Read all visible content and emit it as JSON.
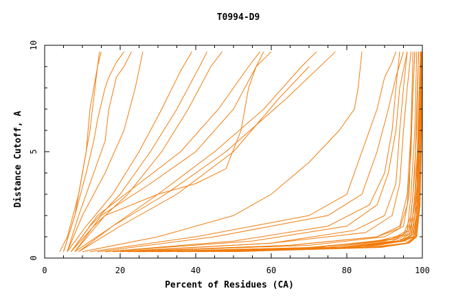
{
  "chart_data": {
    "type": "line",
    "title": "T0994-D9",
    "xlabel": "Percent of Residues (CA)",
    "ylabel": "Distance Cutoff, A",
    "xlim": [
      0,
      100
    ],
    "ylim": [
      0,
      10
    ],
    "x_ticks": [
      "0",
      "20",
      "40",
      "60",
      "80",
      "100"
    ],
    "y_ticks": [
      "0",
      "5",
      "10"
    ],
    "line_color": "#f07c0c",
    "grid": false,
    "series": [
      {
        "x": [
          5,
          8,
          10,
          12,
          13,
          14,
          15
        ],
        "y": [
          0.3,
          2,
          4,
          6,
          7.5,
          9,
          9.7
        ]
      },
      {
        "x": [
          4,
          6,
          9,
          11,
          12,
          14,
          14.5
        ],
        "y": [
          0.3,
          1,
          3,
          5,
          7,
          9,
          9.7
        ]
      },
      {
        "x": [
          5,
          8,
          11,
          13,
          14,
          16,
          17,
          19,
          21
        ],
        "y": [
          0.3,
          2,
          4,
          5.5,
          6.5,
          8,
          8.5,
          9.2,
          9.7
        ]
      },
      {
        "x": [
          6,
          9,
          13,
          16,
          17,
          19,
          21,
          23
        ],
        "y": [
          0.3,
          2,
          4,
          5.5,
          7,
          8.5,
          9,
          9.7
        ]
      },
      {
        "x": [
          6,
          10,
          16,
          21,
          24,
          26
        ],
        "y": [
          0.3,
          2,
          4,
          6,
          8,
          9.7
        ]
      },
      {
        "x": [
          6,
          11,
          18,
          25,
          31,
          36,
          39
        ],
        "y": [
          0.3,
          1.5,
          3,
          5,
          7,
          8.8,
          9.7
        ]
      },
      {
        "x": [
          7,
          12,
          20,
          28,
          35,
          41,
          43
        ],
        "y": [
          0.3,
          1.5,
          3,
          5,
          7,
          9,
          9.7
        ]
      },
      {
        "x": [
          7,
          13,
          22,
          31,
          38,
          44,
          47
        ],
        "y": [
          0.3,
          1.5,
          3,
          5,
          7,
          9,
          9.7
        ]
      },
      {
        "x": [
          7,
          14,
          25,
          36,
          46,
          54,
          57
        ],
        "y": [
          0.3,
          2,
          3.5,
          5,
          7,
          9,
          9.7
        ]
      },
      {
        "x": [
          8,
          15,
          28,
          40,
          50,
          56,
          60
        ],
        "y": [
          0.3,
          2,
          3.5,
          5,
          7,
          9,
          9.7
        ]
      },
      {
        "x": [
          8,
          16,
          30,
          40,
          48,
          52,
          54,
          56,
          58
        ],
        "y": [
          0.3,
          2,
          3,
          3.5,
          4.2,
          6,
          8,
          9,
          9.7
        ]
      },
      {
        "x": [
          8,
          18,
          30,
          45,
          58,
          68,
          72
        ],
        "y": [
          0.3,
          1.5,
          3,
          5,
          7,
          9,
          9.7
        ]
      },
      {
        "x": [
          9,
          18,
          32,
          48,
          64,
          77
        ],
        "y": [
          0.3,
          1.5,
          3,
          5,
          7.5,
          9.7
        ]
      },
      {
        "x": [
          9,
          20,
          35,
          50,
          62,
          70
        ],
        "y": [
          0.3,
          1.5,
          3,
          5,
          7.5,
          9
        ]
      },
      {
        "x": [
          10,
          30,
          50,
          60,
          70,
          78,
          82,
          83,
          84
        ],
        "y": [
          0.3,
          1,
          2,
          3,
          4.5,
          6,
          7,
          8,
          9.7
        ]
      },
      {
        "x": [
          12,
          40,
          70,
          80,
          84,
          88,
          90,
          92,
          93
        ],
        "y": [
          0.3,
          1,
          2,
          3,
          5,
          7,
          8.5,
          9.2,
          9.7
        ]
      },
      {
        "x": [
          14,
          45,
          75,
          84,
          88,
          91,
          93,
          95
        ],
        "y": [
          0.3,
          1,
          2,
          3,
          5,
          7,
          8.5,
          9.7
        ]
      },
      {
        "x": [
          16,
          55,
          80,
          88,
          91,
          93,
          94,
          96
        ],
        "y": [
          0.3,
          0.8,
          1.5,
          2.5,
          4,
          6,
          8,
          9.7
        ]
      },
      {
        "x": [
          16,
          50,
          75,
          86,
          90,
          92,
          93,
          94
        ],
        "y": [
          0.3,
          0.8,
          1.5,
          2.5,
          4,
          6,
          8,
          9.7
        ]
      },
      {
        "x": [
          18,
          60,
          85,
          92,
          94,
          95,
          96,
          97
        ],
        "y": [
          0.3,
          0.7,
          1.2,
          2,
          3.5,
          6,
          8,
          9.7
        ]
      },
      {
        "x": [
          20,
          60,
          82,
          90,
          93,
          94,
          95,
          96
        ],
        "y": [
          0.3,
          0.7,
          1.3,
          2,
          3.5,
          6,
          8,
          9.7
        ]
      },
      {
        "x": [
          20,
          65,
          88,
          94,
          96,
          97,
          98
        ],
        "y": [
          0.3,
          0.6,
          1,
          1.5,
          3,
          6,
          9.7
        ]
      },
      {
        "x": [
          22,
          70,
          90,
          95,
          96.5,
          97,
          97.5
        ],
        "y": [
          0.3,
          0.6,
          1,
          1.5,
          3,
          6,
          9.7
        ]
      },
      {
        "x": [
          22,
          65,
          88,
          94,
          96,
          97,
          97.5,
          98
        ],
        "y": [
          0.3,
          0.6,
          1,
          1.4,
          2.5,
          5,
          8,
          9.7
        ]
      },
      {
        "x": [
          24,
          72,
          92,
          96,
          97,
          98,
          98.5
        ],
        "y": [
          0.3,
          0.5,
          0.9,
          1.3,
          3,
          6,
          9.7
        ]
      },
      {
        "x": [
          25,
          75,
          93,
          96.5,
          97.5,
          98.5,
          99
        ],
        "y": [
          0.3,
          0.5,
          0.9,
          1.3,
          3,
          6,
          9.7
        ]
      },
      {
        "x": [
          26,
          78,
          94,
          97,
          98,
          99,
          99.5
        ],
        "y": [
          0.3,
          0.5,
          0.8,
          1.2,
          3,
          6,
          9.7
        ]
      },
      {
        "x": [
          28,
          80,
          95,
          97.5,
          98.5,
          99,
          99.5
        ],
        "y": [
          0.3,
          0.5,
          0.8,
          1.2,
          3,
          6,
          9.7
        ]
      },
      {
        "x": [
          30,
          82,
          95.5,
          98,
          98.8,
          99.3,
          99.7
        ],
        "y": [
          0.3,
          0.5,
          0.8,
          1.2,
          3,
          6,
          9.7
        ]
      },
      {
        "x": [
          30,
          70,
          88,
          95,
          97,
          98,
          98.5,
          99
        ],
        "y": [
          0.3,
          0.5,
          0.8,
          1.1,
          2,
          4,
          7,
          9.7
        ]
      },
      {
        "x": [
          32,
          75,
          90,
          95.5,
          97.5,
          98.5,
          99,
          99.5
        ],
        "y": [
          0.3,
          0.5,
          0.8,
          1.1,
          2,
          4,
          7,
          9.7
        ]
      },
      {
        "x": [
          35,
          78,
          92,
          96,
          98,
          98.8,
          99.5,
          99.8
        ],
        "y": [
          0.3,
          0.5,
          0.8,
          1.1,
          2,
          4,
          7,
          9.7
        ]
      },
      {
        "x": [
          36,
          80,
          93,
          96.5,
          98,
          99,
          99.5
        ],
        "y": [
          0.3,
          0.5,
          0.8,
          1,
          2.5,
          6,
          9.7
        ]
      },
      {
        "x": [
          38,
          82,
          94,
          97,
          98.5,
          99,
          99.5,
          100
        ],
        "y": [
          0.3,
          0.5,
          0.8,
          1,
          2.5,
          5,
          8,
          9.7
        ]
      },
      {
        "x": [
          40,
          84,
          94.5,
          97.5,
          98.8,
          99.3,
          99.7
        ],
        "y": [
          0.3,
          0.5,
          0.8,
          1,
          2.5,
          6,
          9.7
        ]
      },
      {
        "x": [
          42,
          85,
          95,
          97.8,
          99,
          99.5,
          99.8
        ],
        "y": [
          0.3,
          0.5,
          0.8,
          1,
          2.5,
          6,
          9.7
        ]
      },
      {
        "x": [
          44,
          86,
          95.5,
          98,
          99,
          99.5,
          100
        ],
        "y": [
          0.3,
          0.5,
          0.7,
          1,
          2.5,
          6,
          9.7
        ]
      },
      {
        "x": [
          46,
          87,
          96,
          98.2,
          99.2,
          99.6,
          100
        ],
        "y": [
          0.3,
          0.5,
          0.7,
          1,
          2.5,
          6,
          9.7
        ]
      },
      {
        "x": [
          48,
          88,
          96.3,
          98.4,
          99.3,
          99.7,
          100
        ],
        "y": [
          0.3,
          0.5,
          0.7,
          1,
          2.5,
          6,
          9.7
        ]
      },
      {
        "x": [
          50,
          89,
          96.5,
          98.5,
          99.4,
          99.8,
          100
        ],
        "y": [
          0.3,
          0.5,
          0.7,
          1,
          2.5,
          6,
          9.7
        ]
      }
    ]
  }
}
